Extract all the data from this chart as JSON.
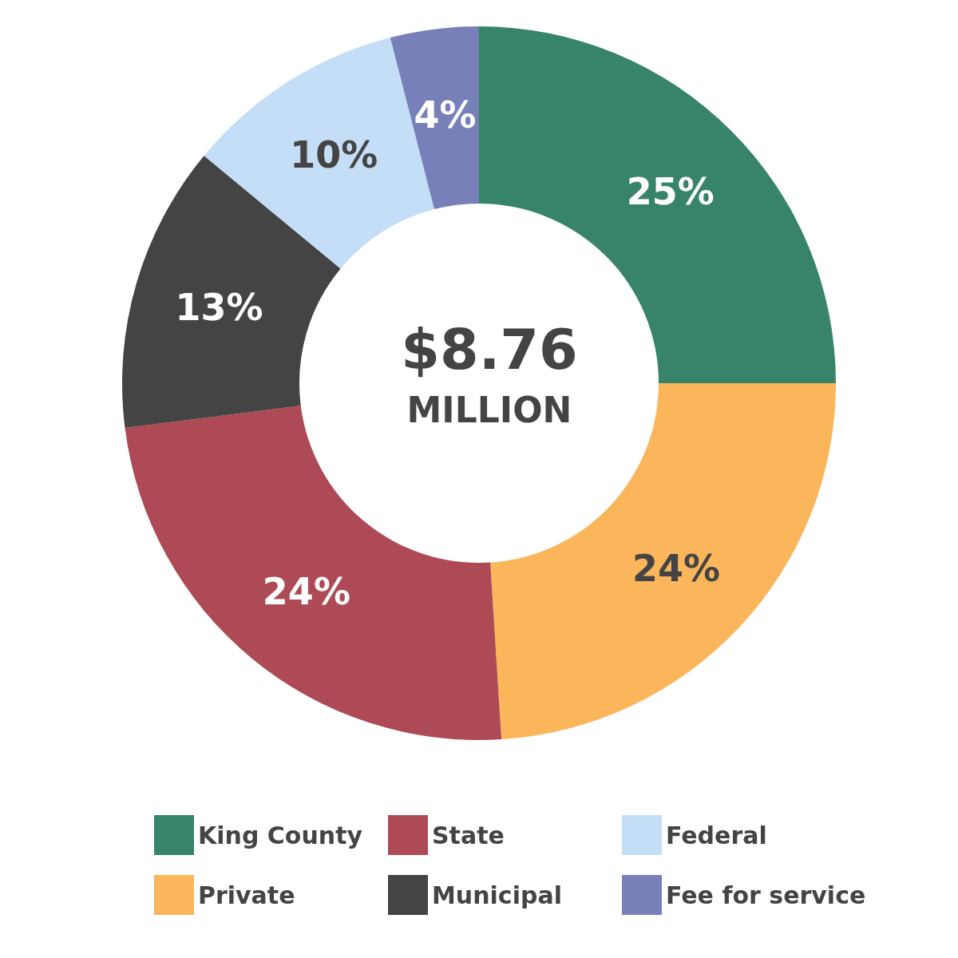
{
  "chart_data": {
    "type": "donut",
    "categories": [
      "King County",
      "Private",
      "State",
      "Municipal",
      "Federal",
      "Fee for service"
    ],
    "values": [
      25,
      24,
      24,
      13,
      10,
      4
    ],
    "value_labels": [
      "25%",
      "24%",
      "24%",
      "13%",
      "10%",
      "4%"
    ],
    "colors": [
      "#38846a",
      "#fbb65c",
      "#ad4a55",
      "#444444",
      "#c3def6",
      "#7780b8"
    ],
    "annotations": [
      "$8.76",
      "MILLION"
    ],
    "legend": "bottom"
  }
}
